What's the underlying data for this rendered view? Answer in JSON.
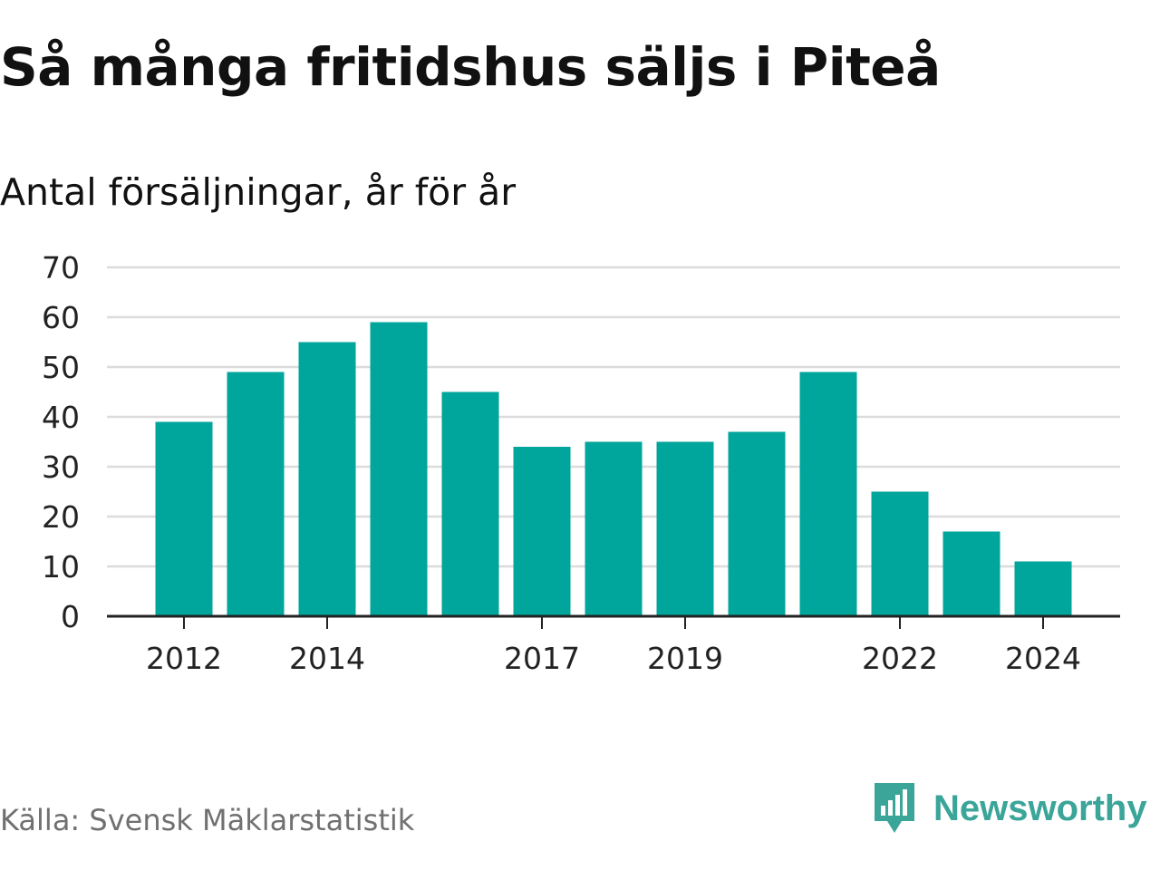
{
  "title": "Så många fritidshus säljs i Piteå",
  "subtitle": "Antal försäljningar, år för år",
  "source": "Källa: Svensk Mäklarstatistik",
  "brand": {
    "name": "Newsworthy",
    "icon": "newsworthy-logo-icon",
    "color": "#3aa598"
  },
  "colors": {
    "bar": "#00a59b",
    "grid": "#dcdcdc",
    "axis": "#222222",
    "tick_text": "#222222"
  },
  "chart_data": {
    "type": "bar",
    "title": "Så många fritidshus säljs i Piteå",
    "subtitle": "Antal försäljningar, år för år",
    "categories": [
      "2012",
      "2013",
      "2014",
      "2015",
      "2016",
      "2017",
      "2018",
      "2019",
      "2020",
      "2021",
      "2022",
      "2023",
      "2024"
    ],
    "values": [
      39,
      49,
      55,
      59,
      45,
      34,
      35,
      35,
      37,
      49,
      25,
      17,
      11
    ],
    "x_tick_labels": [
      "2012",
      "2014",
      "2017",
      "2019",
      "2022",
      "2024"
    ],
    "y_ticks": [
      0,
      10,
      20,
      30,
      40,
      50,
      60,
      70
    ],
    "ylim": [
      0,
      70
    ],
    "xlabel": "",
    "ylabel": "",
    "grid": true,
    "legend": "none"
  }
}
